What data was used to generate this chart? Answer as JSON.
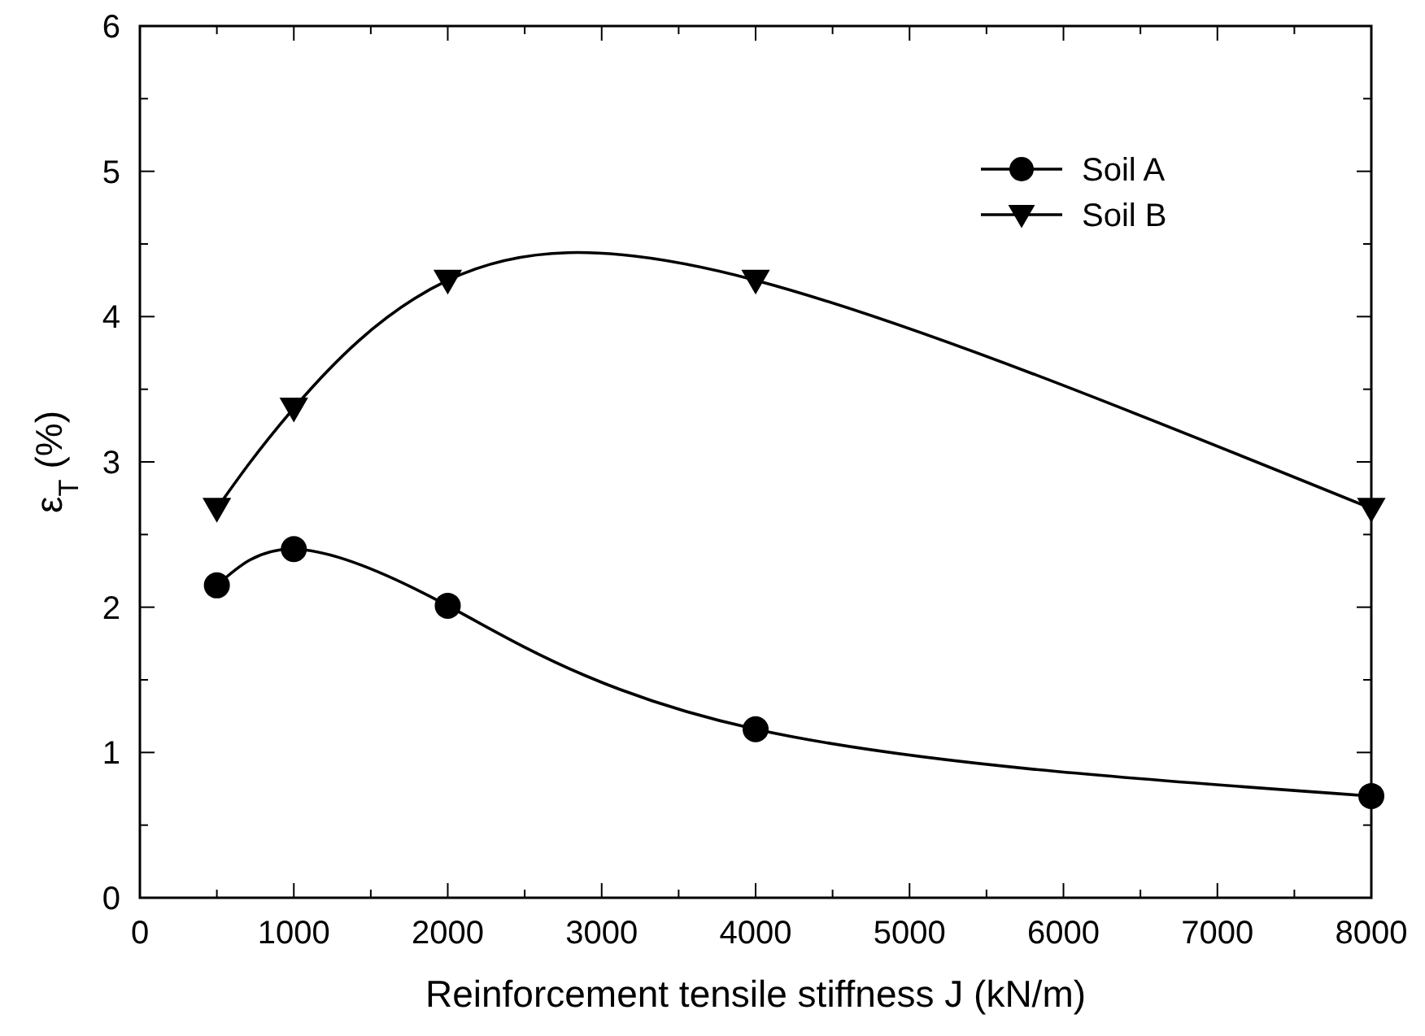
{
  "chart_data": {
    "type": "line",
    "xlabel": "Reinforcement tensile stiffness J (kN/m)",
    "ylabel": "ε$_{T}$ (%)",
    "x": [
      500,
      1000,
      2000,
      4000,
      8000
    ],
    "series": [
      {
        "name": "Soil A",
        "color": "#000000",
        "marker": "circle",
        "values": [
          2.15,
          2.4,
          2.01,
          1.16,
          0.7
        ]
      },
      {
        "name": "Soil B",
        "color": "#000000",
        "marker": "triangle",
        "values": [
          2.68,
          3.37,
          4.25,
          4.25,
          2.68
        ]
      }
    ],
    "xlim": [
      0,
      8000
    ],
    "xticks": [
      0,
      {
        "value": 500,
        "label": null
      },
      1000,
      {
        "value": 1500,
        "label": null
      },
      2000,
      {
        "value": 2500,
        "label": null
      },
      3000,
      {
        "value": 3500,
        "label": null
      },
      4000,
      {
        "value": 4500,
        "label": null
      },
      5000,
      {
        "value": 5500,
        "label": null
      },
      6000,
      {
        "value": 6500,
        "label": null
      },
      7000,
      {
        "value": 7500,
        "label": null
      },
      8000
    ],
    "ylim": [
      0,
      6
    ],
    "yticks": [
      0,
      {
        "value": 0.5,
        "label": null
      },
      1,
      {
        "value": 1.5,
        "label": null
      },
      2,
      {
        "value": 2.5,
        "label": null
      },
      3,
      {
        "value": 3.5,
        "label": null
      },
      4,
      {
        "value": 4.5,
        "label": null
      },
      5,
      {
        "value": 5.5,
        "label": null
      },
      6
    ],
    "grid": false,
    "legend": "top right",
    "line_style": "solid"
  }
}
